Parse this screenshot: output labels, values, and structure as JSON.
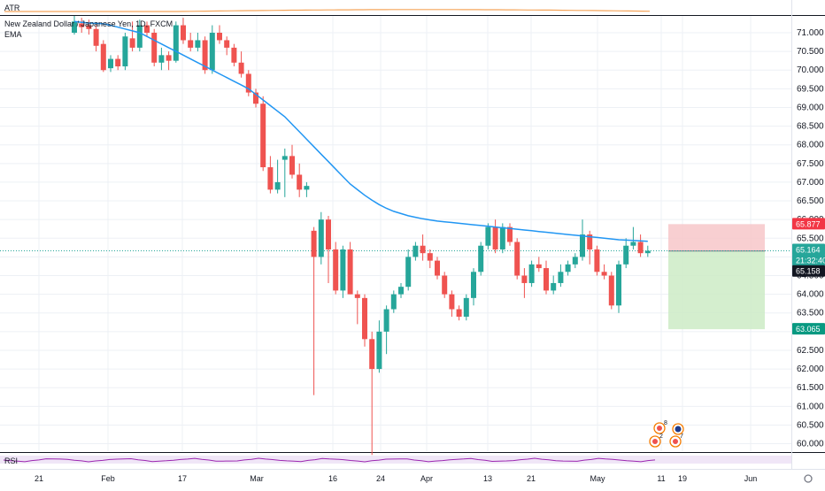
{
  "symbol": {
    "title": "New Zealand Dollar / Japanese Yen, 1D, FXCM",
    "interval": "1D",
    "exchange": "FXCM"
  },
  "indicators": {
    "atr_label": "ATR",
    "ema_label": "EMA",
    "rsi_label": "RSI"
  },
  "colors": {
    "up": "#26a69a",
    "down": "#ef5350",
    "ema": "#2196f3",
    "atr": "#f5a55b",
    "rsi": "#9c27b0",
    "rsi_band": "#e9dcf3",
    "stop_zone": "#f7c7c9",
    "target_zone": "#cdebc6",
    "grid": "#edf0f5"
  },
  "price_axis": {
    "ticks": [
      "71.000",
      "70.500",
      "70.000",
      "69.500",
      "69.000",
      "68.500",
      "68.000",
      "67.500",
      "67.000",
      "66.500",
      "66.000",
      "65.500",
      "65.000",
      "64.500",
      "64.000",
      "63.500",
      "63.000",
      "62.500",
      "62.000",
      "61.500",
      "61.000",
      "60.500",
      "60.000"
    ],
    "badges": {
      "stop": {
        "value": "65.877",
        "price": 65.877,
        "color": "#f23645"
      },
      "current": {
        "value": "65.164",
        "price": 65.164,
        "color": "#26a69a"
      },
      "countdown": {
        "value": "21:32:40",
        "color": "#26a69a"
      },
      "entry": {
        "value": "65.158",
        "price": 65.158,
        "color": "#131722"
      },
      "target": {
        "value": "63.065",
        "price": 63.065,
        "color": "#089981"
      }
    }
  },
  "time_axis": {
    "ticks": [
      "21",
      "Feb",
      "17",
      "Mar",
      "16",
      "24",
      "Apr",
      "13",
      "21",
      "May",
      "11",
      "19",
      "Jun"
    ]
  },
  "events": {
    "top_badge": "8",
    "left_badge": "2",
    "right_badge": "7"
  },
  "chart_data": {
    "type": "candlestick",
    "title": "New Zealand Dollar / Japanese Yen, 1D, FXCM",
    "ylim": [
      59.8,
      71.45
    ],
    "candles": [
      [
        71.0,
        71.3,
        71.45,
        70.95
      ],
      [
        71.25,
        71.15,
        71.4,
        71.0
      ],
      [
        71.2,
        71.1,
        71.35,
        70.95
      ],
      [
        71.1,
        70.65,
        71.2,
        70.5
      ],
      [
        70.7,
        70.0,
        70.8,
        69.95
      ],
      [
        70.05,
        70.3,
        70.4,
        69.95
      ],
      [
        70.3,
        70.1,
        70.4,
        70.0
      ],
      [
        70.1,
        70.9,
        71.0,
        70.0
      ],
      [
        70.85,
        70.6,
        71.3,
        70.5
      ],
      [
        70.6,
        71.2,
        71.35,
        70.5
      ],
      [
        71.2,
        71.0,
        71.3,
        70.9
      ],
      [
        71.0,
        70.2,
        71.1,
        70.1
      ],
      [
        70.2,
        70.4,
        70.6,
        70.0
      ],
      [
        70.4,
        70.25,
        70.5,
        70.0
      ],
      [
        70.25,
        71.2,
        71.3,
        70.2
      ],
      [
        71.2,
        70.8,
        71.4,
        70.7
      ],
      [
        70.8,
        70.6,
        71.0,
        70.5
      ],
      [
        70.6,
        70.8,
        71.0,
        70.5
      ],
      [
        70.8,
        70.0,
        70.9,
        69.9
      ],
      [
        70.0,
        71.0,
        71.2,
        69.9
      ],
      [
        71.0,
        70.8,
        71.2,
        70.7
      ],
      [
        70.8,
        70.6,
        70.9,
        70.4
      ],
      [
        70.6,
        70.2,
        70.7,
        70.1
      ],
      [
        70.2,
        69.9,
        70.5,
        69.8
      ],
      [
        69.9,
        69.4,
        70.0,
        69.3
      ],
      [
        69.4,
        69.1,
        69.5,
        69.0
      ],
      [
        69.1,
        67.4,
        69.3,
        67.3
      ],
      [
        67.4,
        66.8,
        67.7,
        66.7
      ],
      [
        66.8,
        67.0,
        67.6,
        66.7
      ],
      [
        67.6,
        67.7,
        67.9,
        66.6
      ],
      [
        67.7,
        67.2,
        68.0,
        67.1
      ],
      [
        67.2,
        66.8,
        67.5,
        66.6
      ],
      [
        66.8,
        66.9,
        67.0,
        66.6
      ],
      [
        65.7,
        65.0,
        65.8,
        61.3
      ],
      [
        65.0,
        66.0,
        66.2,
        64.8
      ],
      [
        66.0,
        65.2,
        66.1,
        64.3
      ],
      [
        65.2,
        64.1,
        65.4,
        64.0
      ],
      [
        64.1,
        65.2,
        65.3,
        63.9
      ],
      [
        65.2,
        64.0,
        65.4,
        64.0
      ],
      [
        64.0,
        63.9,
        64.1,
        63.2
      ],
      [
        63.9,
        62.8,
        64.0,
        62.6
      ],
      [
        62.8,
        62.0,
        63.0,
        59.7
      ],
      [
        62.0,
        63.0,
        63.3,
        61.9
      ],
      [
        63.0,
        63.6,
        63.7,
        62.4
      ],
      [
        63.6,
        64.0,
        64.1,
        63.5
      ],
      [
        64.0,
        64.2,
        64.3,
        63.9
      ],
      [
        64.2,
        65.0,
        65.2,
        64.1
      ],
      [
        65.0,
        65.3,
        65.4,
        64.9
      ],
      [
        65.3,
        65.1,
        65.6,
        64.9
      ],
      [
        65.1,
        64.9,
        65.2,
        64.7
      ],
      [
        64.9,
        64.5,
        65.0,
        64.4
      ],
      [
        64.5,
        64.0,
        64.6,
        63.9
      ],
      [
        64.0,
        63.6,
        64.1,
        63.4
      ],
      [
        63.6,
        63.4,
        63.7,
        63.3
      ],
      [
        63.4,
        63.9,
        64.0,
        63.3
      ],
      [
        63.9,
        64.6,
        64.7,
        63.7
      ],
      [
        64.6,
        65.3,
        65.4,
        64.5
      ],
      [
        65.3,
        65.8,
        65.9,
        65.2
      ],
      [
        65.8,
        65.2,
        66.0,
        65.1
      ],
      [
        65.2,
        65.8,
        65.9,
        65.1
      ],
      [
        65.8,
        65.4,
        65.9,
        65.3
      ],
      [
        65.4,
        64.5,
        65.5,
        64.4
      ],
      [
        64.5,
        64.3,
        64.7,
        63.9
      ],
      [
        64.3,
        64.8,
        64.9,
        64.2
      ],
      [
        64.8,
        64.7,
        65.0,
        64.6
      ],
      [
        64.7,
        64.1,
        64.9,
        64.0
      ],
      [
        64.1,
        64.3,
        64.5,
        64.0
      ],
      [
        64.3,
        64.6,
        64.8,
        64.2
      ],
      [
        64.6,
        64.8,
        64.9,
        64.5
      ],
      [
        64.8,
        65.0,
        65.1,
        64.7
      ],
      [
        65.0,
        65.6,
        66.0,
        64.9
      ],
      [
        65.6,
        65.2,
        65.7,
        64.8
      ],
      [
        65.2,
        64.6,
        65.3,
        64.5
      ],
      [
        64.6,
        64.5,
        64.8,
        64.4
      ],
      [
        64.5,
        63.7,
        64.6,
        63.6
      ],
      [
        63.7,
        64.8,
        64.9,
        63.5
      ],
      [
        64.8,
        65.3,
        65.5,
        64.7
      ],
      [
        65.3,
        65.4,
        65.8,
        65.2
      ],
      [
        65.4,
        65.1,
        65.6,
        65.0
      ],
      [
        65.1,
        65.164,
        65.3,
        65.0
      ]
    ],
    "ema": [
      71.3,
      71.28,
      71.26,
      71.25,
      71.24,
      71.2,
      71.15,
      71.1,
      71.05,
      71.0,
      70.9,
      70.8,
      70.7,
      70.6,
      70.5,
      70.4,
      70.3,
      70.2,
      70.1,
      70.0,
      69.9,
      69.8,
      69.7,
      69.6,
      69.5,
      69.35,
      69.2,
      69.05,
      68.9,
      68.75,
      68.55,
      68.35,
      68.15,
      67.95,
      67.75,
      67.55,
      67.35,
      67.15,
      66.95,
      66.8,
      66.65,
      66.52,
      66.4,
      66.3,
      66.22,
      66.16,
      66.1,
      66.06,
      66.02,
      65.99,
      65.96,
      65.94,
      65.92,
      65.9,
      65.88,
      65.86,
      65.84,
      65.82,
      65.8,
      65.78,
      65.76,
      65.74,
      65.72,
      65.7,
      65.68,
      65.66,
      65.64,
      65.62,
      65.6,
      65.58,
      65.56,
      65.54,
      65.52,
      65.5,
      65.48,
      65.46,
      65.45,
      65.44,
      65.43,
      65.42
    ],
    "position": {
      "type": "short",
      "entry": 65.158,
      "stop": 65.877,
      "target": 63.065
    }
  }
}
